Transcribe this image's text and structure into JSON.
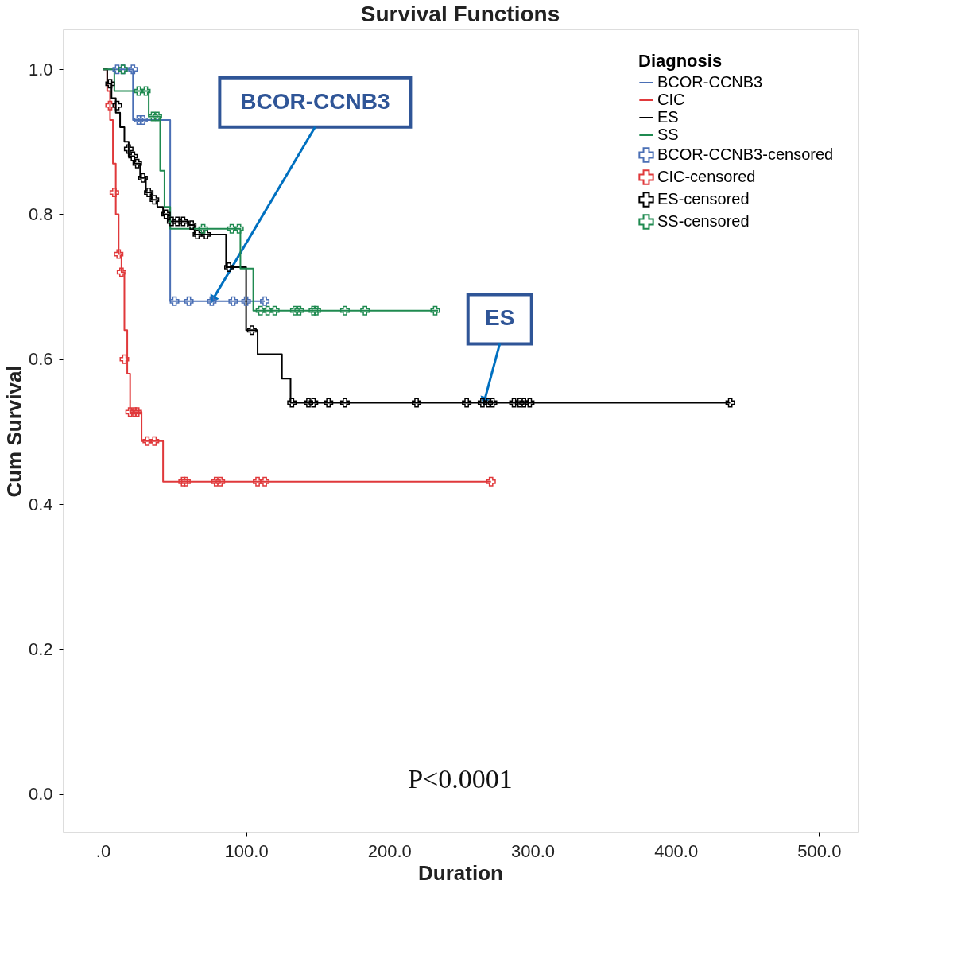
{
  "chart_data": {
    "type": "step",
    "title": "Survival Functions",
    "xlabel": "Duration",
    "ylabel": "Cum Survival",
    "legend_title": "Diagnosis",
    "legend": "top right",
    "grid": false,
    "xlim": [
      -28,
      527
    ],
    "ylim": [
      -0.053,
      1.055
    ],
    "xticks": [
      {
        "value": 0,
        "label": ".0"
      },
      {
        "value": 100,
        "label": "100.0"
      },
      {
        "value": 200,
        "label": "200.0"
      },
      {
        "value": 300,
        "label": "300.0"
      },
      {
        "value": 400,
        "label": "400.0"
      },
      {
        "value": 500,
        "label": "500.0"
      }
    ],
    "yticks": [
      {
        "value": 0,
        "label": "0.0"
      },
      {
        "value": 0.2,
        "label": "0.2"
      },
      {
        "value": 0.4,
        "label": "0.4"
      },
      {
        "value": 0.6,
        "label": "0.6"
      },
      {
        "value": 0.8,
        "label": "0.8"
      },
      {
        "value": 1,
        "label": "1.0"
      }
    ],
    "series": [
      {
        "name": "BCOR-CCNB3",
        "marker": "none",
        "color": "#4a6fb5",
        "x": [
          0,
          21,
          47,
          113
        ],
        "values": [
          1.0,
          0.93,
          0.68,
          0.68
        ]
      },
      {
        "name": "CIC",
        "marker": "none",
        "color": "#e0393b",
        "x": [
          0,
          3,
          5,
          7,
          9,
          11,
          13,
          15,
          17,
          19,
          27,
          42,
          271
        ],
        "values": [
          1.0,
          0.97,
          0.93,
          0.87,
          0.8,
          0.745,
          0.72,
          0.64,
          0.58,
          0.527,
          0.487,
          0.431,
          0.431
        ]
      },
      {
        "name": "ES",
        "marker": "none",
        "color": "#000000",
        "x": [
          0,
          3,
          6,
          9,
          12,
          15,
          18,
          22,
          26,
          30,
          34,
          38,
          42,
          46,
          60,
          64,
          86,
          100,
          108,
          125,
          131,
          438
        ],
        "values": [
          1.0,
          0.98,
          0.96,
          0.94,
          0.92,
          0.9,
          0.88,
          0.87,
          0.85,
          0.83,
          0.82,
          0.81,
          0.8,
          0.79,
          0.785,
          0.772,
          0.727,
          0.64,
          0.607,
          0.573,
          0.54,
          0.54
        ]
      },
      {
        "name": "SS",
        "marker": "none",
        "color": "#1f8a50",
        "x": [
          0,
          8,
          32,
          40,
          43,
          47,
          96,
          105,
          234
        ],
        "values": [
          1.0,
          0.97,
          0.935,
          0.86,
          0.81,
          0.78,
          0.725,
          0.667,
          0.667
        ]
      },
      {
        "name": "BCOR-CCNB3-censored",
        "type": "scatter",
        "marker": "cross",
        "color": "#4a6fb5",
        "x": [
          10,
          14,
          21,
          25,
          28,
          50,
          60,
          76,
          91,
          100,
          113
        ],
        "values": [
          1.0,
          1.0,
          1.0,
          0.93,
          0.93,
          0.68,
          0.68,
          0.68,
          0.68,
          0.68,
          0.68
        ]
      },
      {
        "name": "CIC-censored",
        "type": "scatter",
        "marker": "cross",
        "color": "#e0393b",
        "x": [
          5,
          8,
          11,
          13,
          15,
          19,
          22,
          24,
          31,
          36,
          56,
          58,
          79,
          82,
          108,
          113,
          271
        ],
        "values": [
          0.95,
          0.83,
          0.745,
          0.72,
          0.6,
          0.527,
          0.527,
          0.527,
          0.487,
          0.487,
          0.431,
          0.431,
          0.431,
          0.431,
          0.431,
          0.431,
          0.431
        ]
      },
      {
        "name": "ES-censored",
        "type": "scatter",
        "marker": "cross",
        "color": "#000000",
        "x": [
          5,
          10,
          18,
          21,
          24,
          28,
          32,
          36,
          44,
          48,
          52,
          56,
          62,
          66,
          72,
          88,
          104,
          132,
          143.5,
          147,
          157.5,
          169,
          219,
          254,
          265,
          269,
          272,
          287,
          291,
          294,
          298,
          438
        ],
        "values": [
          0.98,
          0.95,
          0.89,
          0.88,
          0.87,
          0.85,
          0.83,
          0.82,
          0.8,
          0.79,
          0.79,
          0.79,
          0.785,
          0.772,
          0.772,
          0.727,
          0.64,
          0.54,
          0.54,
          0.54,
          0.54,
          0.54,
          0.54,
          0.54,
          0.54,
          0.54,
          0.54,
          0.54,
          0.54,
          0.54,
          0.54,
          0.54
        ]
      },
      {
        "name": "SS-censored",
        "type": "scatter",
        "marker": "cross",
        "color": "#1f8a50",
        "x": [
          14,
          25,
          30,
          35,
          38,
          70,
          90,
          95,
          110,
          115,
          120,
          134,
          137,
          147,
          149,
          169,
          183,
          232
        ],
        "values": [
          1.0,
          0.97,
          0.97,
          0.935,
          0.935,
          0.78,
          0.78,
          0.78,
          0.667,
          0.667,
          0.667,
          0.667,
          0.667,
          0.667,
          0.667,
          0.667,
          0.667,
          0.667
        ]
      }
    ],
    "annotations": [
      {
        "text": "BCOR-CCNB3",
        "x": 76,
        "y": 0.68
      },
      {
        "text": "ES",
        "x": 266,
        "y": 0.54
      },
      "P<0.0001"
    ]
  }
}
